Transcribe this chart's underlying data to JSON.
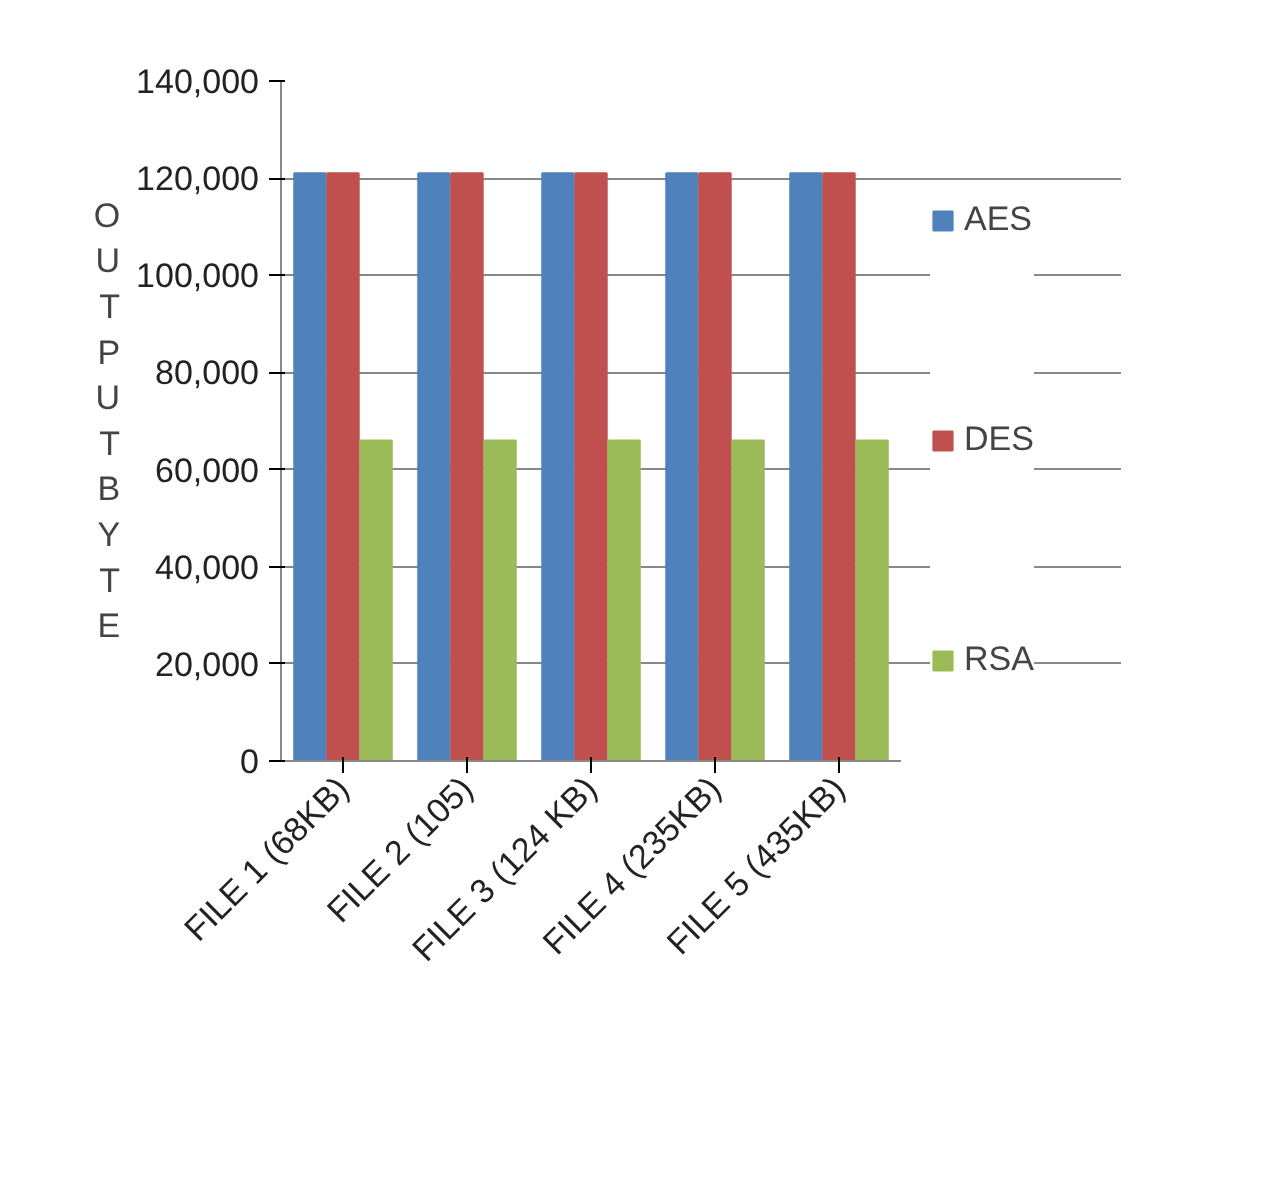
{
  "chart_data": {
    "type": "bar",
    "ylabel": "OUTPUTBYTE",
    "categories": [
      "FILE 1 (68KB)",
      "FILE 2 (105)",
      "FILE 3 (124 KB)",
      "FILE 4 (235KB)",
      "FILE 5 (435KB)"
    ],
    "series": [
      {
        "name": "AES",
        "color": "#4f81bd",
        "values": [
          121000,
          121000,
          121000,
          121000,
          121000
        ]
      },
      {
        "name": "DES",
        "color": "#c0504d",
        "values": [
          121000,
          121000,
          121000,
          121000,
          121000
        ]
      },
      {
        "name": "RSA",
        "color": "#9bbb59",
        "values": [
          66000,
          66000,
          66000,
          66000,
          66000
        ]
      }
    ],
    "ylim": [
      0,
      140000
    ],
    "yticks": [
      {
        "value": 0,
        "label": "0"
      },
      {
        "value": 20000,
        "label": "20,000"
      },
      {
        "value": 40000,
        "label": "40,000"
      },
      {
        "value": 60000,
        "label": "60,000"
      },
      {
        "value": 80000,
        "label": "80,000"
      },
      {
        "value": 100000,
        "label": "100,000"
      },
      {
        "value": 120000,
        "label": "120,000"
      },
      {
        "value": 140000,
        "label": "140,000"
      }
    ],
    "grid": "y",
    "legend": "right"
  }
}
